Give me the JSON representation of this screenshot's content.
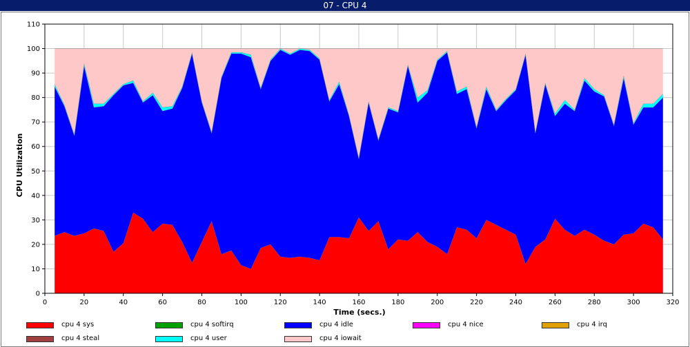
{
  "window": {
    "title": "07 - CPU 4"
  },
  "chart_data": {
    "type": "area",
    "stacked": true,
    "title": "",
    "xlabel": "Time (secs.)",
    "ylabel": "CPU Utilization",
    "xlim": [
      0,
      320
    ],
    "ylim": [
      0,
      110
    ],
    "x_ticks": [
      0,
      20,
      40,
      60,
      80,
      100,
      120,
      140,
      160,
      180,
      200,
      220,
      240,
      260,
      280,
      300,
      320
    ],
    "y_ticks": [
      0,
      10,
      20,
      30,
      40,
      50,
      60,
      70,
      80,
      90,
      100,
      110
    ],
    "grid": true,
    "legend_position": "bottom",
    "x": [
      5,
      10,
      15,
      20,
      25,
      30,
      35,
      40,
      45,
      50,
      55,
      60,
      65,
      70,
      75,
      80,
      85,
      90,
      95,
      100,
      105,
      110,
      115,
      120,
      125,
      130,
      135,
      140,
      145,
      150,
      155,
      160,
      165,
      170,
      175,
      180,
      185,
      190,
      195,
      200,
      205,
      210,
      215,
      220,
      225,
      230,
      235,
      240,
      245,
      250,
      255,
      260,
      265,
      270,
      275,
      280,
      285,
      290,
      295,
      300,
      305,
      310,
      315
    ],
    "series": [
      {
        "name": "cpu 4 sys",
        "color": "#ff0000",
        "values": [
          23.5,
          25,
          23.5,
          24.5,
          26.5,
          25.5,
          17,
          20.5,
          33,
          30.5,
          25,
          28.5,
          28,
          21,
          12.5,
          21,
          29.5,
          16,
          17.5,
          11.5,
          10,
          18.5,
          20,
          15,
          14.5,
          15,
          14.5,
          13.5,
          23,
          23,
          22.5,
          31,
          25.5,
          29.5,
          18,
          22,
          21.5,
          25,
          21,
          19,
          16,
          27,
          26,
          22.5,
          30,
          28,
          26,
          24,
          12,
          19,
          22,
          30.5,
          26,
          23.5,
          26,
          24,
          21.5,
          20,
          24,
          24.5,
          28.5,
          27,
          22
        ]
      },
      {
        "name": "cpu 4 softirq",
        "color": "#00a000",
        "values": [
          0,
          0,
          0,
          0,
          0,
          0,
          0,
          0,
          0,
          0,
          0,
          0,
          0,
          0,
          0,
          0,
          0,
          0,
          0,
          0,
          0,
          0,
          0,
          0,
          0,
          0,
          0,
          0,
          0,
          0,
          0,
          0,
          0,
          0,
          0,
          0,
          0,
          0,
          0,
          0,
          0,
          0,
          0,
          0,
          0,
          0,
          0,
          0,
          0,
          0,
          0,
          0,
          0,
          0,
          0,
          0,
          0,
          0,
          0,
          0,
          0,
          0,
          0
        ]
      },
      {
        "name": "cpu 4 idle",
        "color": "#0000ff",
        "values": [
          61,
          51.5,
          41,
          68.5,
          49.5,
          51,
          64,
          64.5,
          53,
          47.5,
          56,
          46,
          47.5,
          63,
          85.5,
          57,
          36,
          72,
          80.5,
          86.5,
          86.5,
          65,
          75,
          84.5,
          83,
          84.5,
          84.5,
          82,
          55.5,
          62.5,
          50,
          24,
          52.5,
          33,
          57.5,
          52,
          71.5,
          53,
          61,
          76,
          82.5,
          54.5,
          57.5,
          45,
          53.5,
          46.5,
          53,
          59,
          85.5,
          46.5,
          63.5,
          42,
          51.5,
          51,
          61,
          58.5,
          59,
          48.5,
          64,
          44.5,
          47.5,
          49,
          58
        ]
      },
      {
        "name": "cpu 4 nice",
        "color": "#ff00ff",
        "values": [
          0,
          0,
          0,
          0,
          0,
          0,
          0,
          0,
          0,
          0,
          0,
          0,
          0,
          0,
          0,
          0,
          0,
          0,
          0,
          0,
          0,
          0,
          0,
          0,
          0,
          0,
          0,
          0,
          0,
          0,
          0,
          0,
          0,
          0,
          0,
          0,
          0,
          0,
          0,
          0,
          0,
          0,
          0,
          0,
          0,
          0,
          0,
          0,
          0,
          0,
          0,
          0,
          0,
          0,
          0,
          0,
          0,
          0,
          0,
          0,
          0,
          0,
          0
        ]
      },
      {
        "name": "cpu 4 irq",
        "color": "#e0a000",
        "values": [
          0,
          0,
          0,
          0,
          0,
          0,
          0,
          0,
          0,
          0,
          0,
          0,
          0,
          0,
          0,
          0,
          0,
          0,
          0,
          0,
          0,
          0,
          0,
          0,
          0,
          0,
          0,
          0,
          0,
          0,
          0,
          0,
          0,
          0,
          0,
          0,
          0,
          0,
          0,
          0,
          0,
          0,
          0,
          0,
          0,
          0,
          0,
          0,
          0,
          0,
          0,
          0,
          0,
          0,
          0,
          0,
          0,
          0,
          0,
          0,
          0,
          0,
          0
        ]
      },
      {
        "name": "cpu 4 steal",
        "color": "#a04040",
        "values": [
          0,
          0,
          0,
          0,
          0,
          0,
          0,
          0,
          0,
          0,
          0,
          0,
          0,
          0,
          0,
          0,
          0,
          0,
          0,
          0,
          0,
          0,
          0,
          0,
          0,
          0,
          0,
          0,
          0,
          0,
          0,
          0,
          0,
          0,
          0,
          0,
          0,
          0,
          0,
          0,
          0,
          0,
          0,
          0,
          0,
          0,
          0,
          0,
          0,
          0,
          0,
          0,
          0,
          0,
          0,
          0,
          0,
          0,
          0,
          0,
          0,
          0,
          0
        ]
      },
      {
        "name": "cpu 4 user",
        "color": "#00ffff",
        "values": [
          1,
          0.5,
          0.5,
          1,
          1.5,
          1,
          0.5,
          0.5,
          1,
          0.5,
          1,
          1.5,
          1,
          0.5,
          0.5,
          0.5,
          0.5,
          0.5,
          0.5,
          0.5,
          1,
          0.5,
          0.5,
          0.5,
          0.5,
          0.5,
          0.5,
          0.5,
          0.5,
          1,
          0.5,
          0.5,
          0.5,
          0.5,
          0.5,
          0.5,
          0.5,
          2,
          1,
          0.5,
          0.5,
          1,
          1,
          0.5,
          1,
          0.5,
          0.5,
          0.5,
          0.5,
          0.5,
          0.5,
          1,
          1.5,
          0.5,
          1,
          1,
          0.5,
          0.5,
          1,
          0.5,
          1.5,
          1.5,
          1.5
        ]
      },
      {
        "name": "cpu 4 iowait",
        "color": "#ffc8c8",
        "values": [
          14.5,
          23,
          35,
          6,
          22.5,
          22.5,
          18.5,
          14.5,
          13,
          21.5,
          18,
          24,
          23.5,
          15.5,
          1.5,
          21.5,
          34,
          11.5,
          1.5,
          1.5,
          2.5,
          16,
          4.5,
          0,
          2,
          0,
          0.5,
          4,
          21,
          13.5,
          27,
          44.5,
          21.5,
          37,
          24,
          25.5,
          6.5,
          20,
          17,
          4.5,
          1,
          17.5,
          15.5,
          32,
          15.5,
          25,
          20.5,
          16.5,
          2,
          34,
          14,
          26.5,
          21,
          25,
          12,
          16.5,
          19,
          31,
          11,
          30.5,
          22.5,
          22.5,
          18.5
        ]
      }
    ]
  }
}
